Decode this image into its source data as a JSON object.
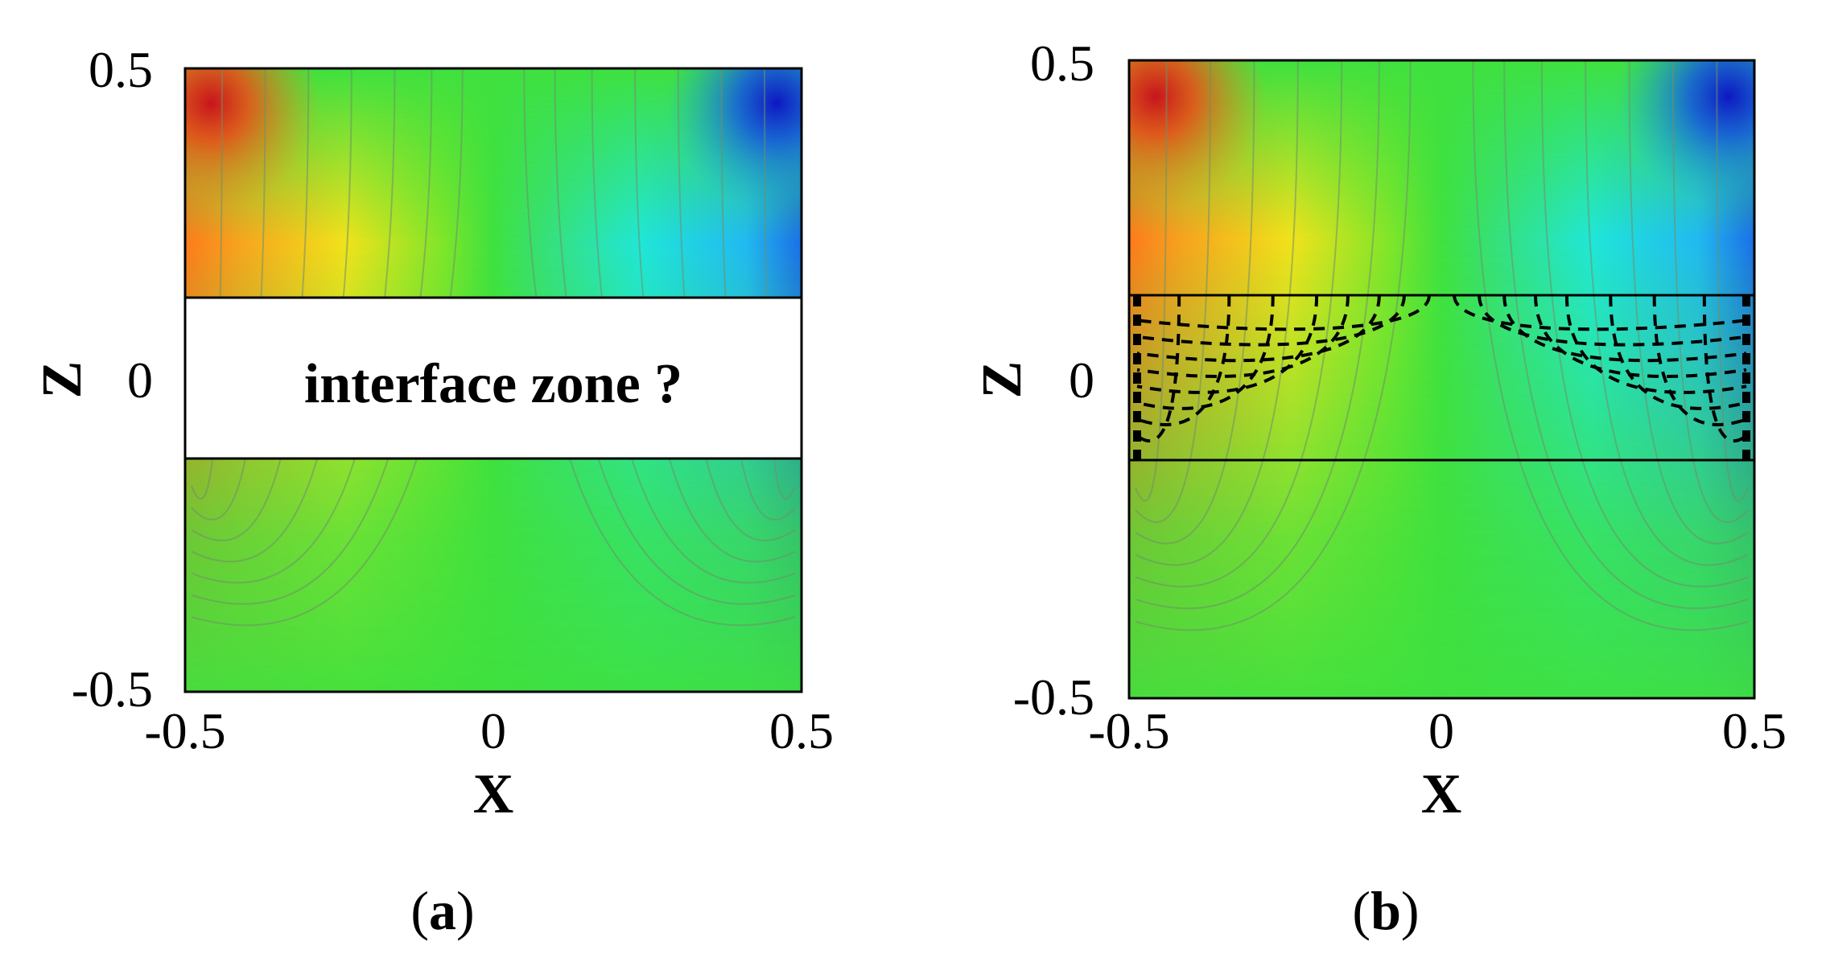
{
  "chart_data": [
    {
      "type": "heatmap",
      "panel_label": "a",
      "xlabel": "X",
      "ylabel": "Z",
      "xlim": [
        -0.5,
        0.5
      ],
      "ylim": [
        -0.5,
        0.5
      ],
      "x_ticks": [
        "-0.5",
        "0",
        "0.5"
      ],
      "y_ticks": [
        "0.5",
        "0",
        "-0.5"
      ],
      "interface_zone": [
        -0.12,
        0.13
      ],
      "interface_style": "blank",
      "annotation": "interface zone ?"
    },
    {
      "type": "heatmap",
      "panel_label": "b",
      "xlabel": "X",
      "ylabel": "Z",
      "xlim": [
        -0.5,
        0.5
      ],
      "ylim": [
        -0.5,
        0.5
      ],
      "x_ticks": [
        "-0.5",
        "0",
        "0.5"
      ],
      "y_ticks": [
        "0.5",
        "0",
        "-0.5"
      ],
      "interface_zone": [
        -0.12,
        0.13
      ],
      "interface_style": "dashed-contours",
      "annotation": ""
    }
  ],
  "colors": {
    "max": "#d42a14",
    "warm": "#f7a21f",
    "mid_warm": "#e9ee1c",
    "neutral": "#3fe13f",
    "mid_cool": "#22e3b4",
    "cool": "#1a98ef",
    "min": "#1020c8"
  }
}
